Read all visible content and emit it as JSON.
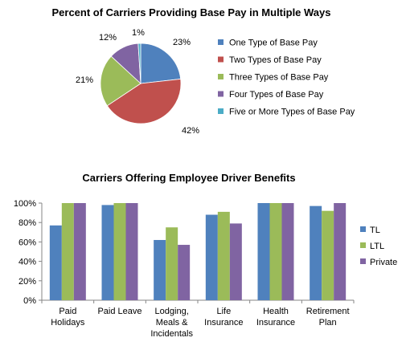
{
  "chart_data": [
    {
      "type": "pie",
      "title": "Percent of Carriers Providing Base Pay in Multiple Ways",
      "slices": [
        {
          "label": "One Type of Base Pay",
          "value": 23,
          "value_label": "23%",
          "color": "#4F81BD"
        },
        {
          "label": "Two Types of Base Pay",
          "value": 42,
          "value_label": "42%",
          "color": "#C0504D"
        },
        {
          "label": "Three Types of Base Pay",
          "value": 21,
          "value_label": "21%",
          "color": "#9BBB59"
        },
        {
          "label": "Four Types of Base Pay",
          "value": 12,
          "value_label": "12%",
          "color": "#8064A2"
        },
        {
          "label": "Five or More Types of Base Pay",
          "value": 1,
          "value_label": "1%",
          "color": "#4BACC6"
        }
      ],
      "legend_position": "right"
    },
    {
      "type": "bar",
      "title": "Carriers Offering Employee Driver Benefits",
      "categories": [
        [
          "Paid",
          "Holidays"
        ],
        [
          "Paid Leave"
        ],
        [
          "Lodging,",
          "Meals &",
          "Incidentals"
        ],
        [
          "Life",
          "Insurance"
        ],
        [
          "Health",
          "Insurance"
        ],
        [
          "Retirement",
          "Plan"
        ]
      ],
      "series": [
        {
          "name": "TL",
          "color": "#4F81BD",
          "values": [
            77,
            98,
            62,
            88,
            100,
            97
          ]
        },
        {
          "name": "LTL",
          "color": "#9BBB59",
          "values": [
            100,
            100,
            75,
            91,
            100,
            92
          ]
        },
        {
          "name": "Private",
          "color": "#8064A2",
          "values": [
            100,
            100,
            57,
            79,
            100,
            100
          ]
        }
      ],
      "ylim": [
        0,
        100
      ],
      "yticks": [
        "0%",
        "20%",
        "40%",
        "60%",
        "80%",
        "100%"
      ],
      "grid": false,
      "legend_position": "right"
    }
  ]
}
